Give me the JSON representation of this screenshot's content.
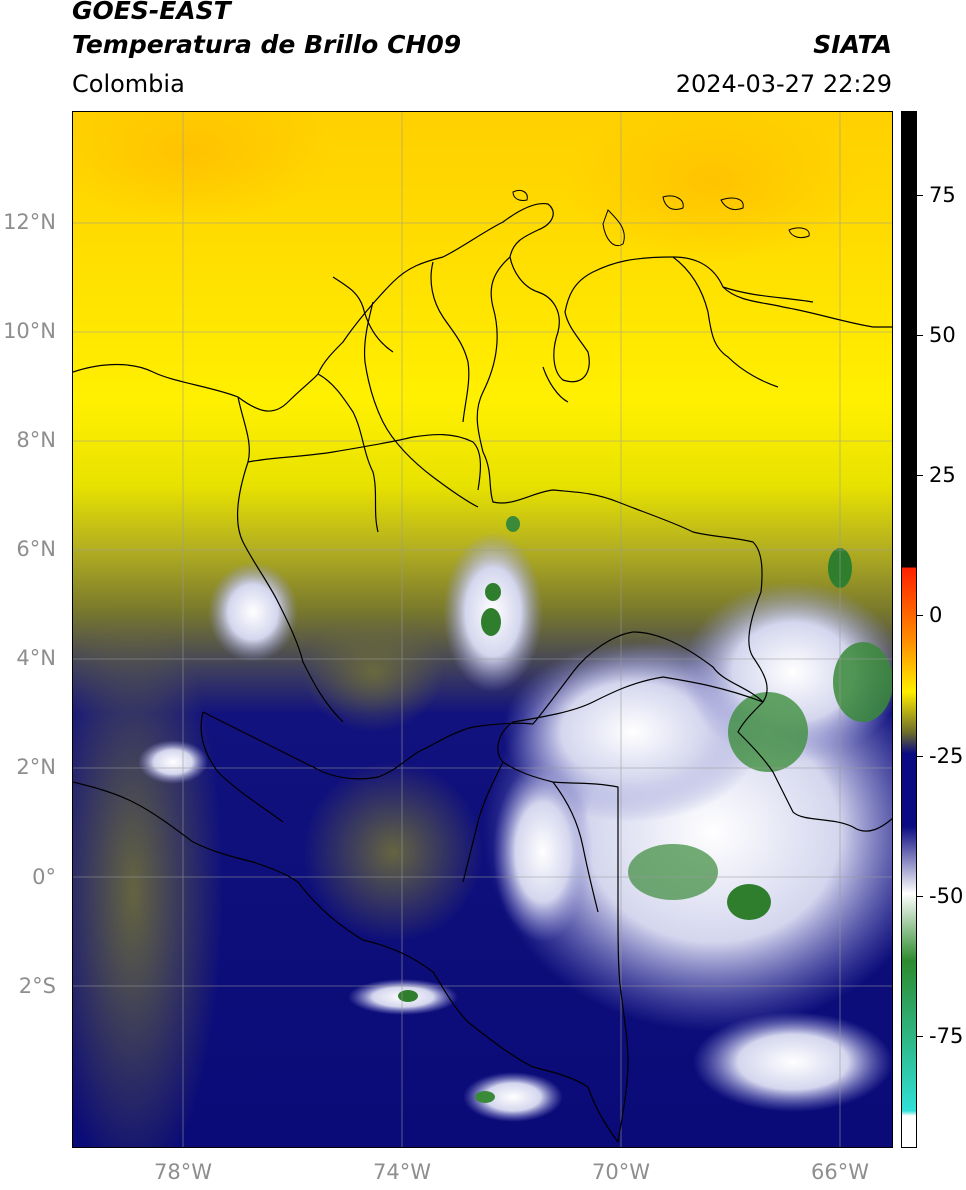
{
  "header": {
    "title_line1": "GOES-EAST",
    "title_line2": "Temperatura de Brillo CH09",
    "agency": "SIATA",
    "region": "Colombia",
    "timestamp": "2024-03-27 22:29"
  },
  "map": {
    "lon_range": [
      -80,
      -65
    ],
    "lat_range": [
      -5,
      14
    ],
    "lat_labels": [
      "12°N",
      "10°N",
      "8°N",
      "6°N",
      "4°N",
      "2°N",
      "0°",
      "2°S"
    ],
    "lon_labels": [
      "78°W",
      "74°W",
      "70°W",
      "66°W"
    ]
  },
  "colorbar": {
    "range": [
      -95,
      90
    ],
    "tick_labels": [
      "75",
      "50",
      "25",
      "0",
      "-25",
      "-50",
      "-75"
    ],
    "colors": {
      "black": "#000000",
      "red": "#ff2000",
      "orange": "#ff8c00",
      "yellow": "#ffee00",
      "olive": "#6b6b2c",
      "navy": "#0a0a82",
      "white": "#ffffff",
      "green": "#2e8b2e",
      "cyan": "#30e0d8"
    }
  }
}
